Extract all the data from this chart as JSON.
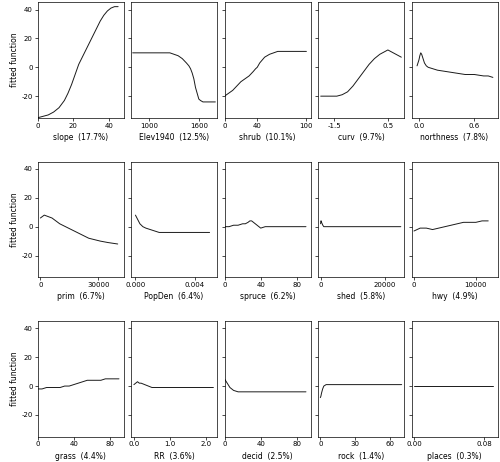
{
  "panels": [
    {
      "label": "slope  (17.7%)",
      "xlim": [
        0,
        48
      ],
      "xticks": [
        0,
        20,
        40
      ],
      "xticklabels": [
        "0",
        "20",
        "40"
      ],
      "x": [
        0,
        3,
        6,
        9,
        12,
        15,
        17,
        19,
        21,
        23,
        25,
        27,
        29,
        31,
        33,
        35,
        37,
        39,
        41,
        43,
        45
      ],
      "y": [
        -35,
        -34,
        -33,
        -31,
        -28,
        -23,
        -18,
        -12,
        -5,
        2,
        7,
        12,
        17,
        22,
        27,
        32,
        36,
        39,
        41,
        42,
        42
      ]
    },
    {
      "label": "Elev1940  (12.5%)",
      "xlim": [
        780,
        1820
      ],
      "xticks": [
        1000,
        1600
      ],
      "xticklabels": [
        "1000",
        "1600"
      ],
      "x": [
        800,
        850,
        900,
        950,
        1000,
        1050,
        1100,
        1150,
        1200,
        1250,
        1300,
        1350,
        1400,
        1450,
        1480,
        1500,
        1520,
        1540,
        1550,
        1560,
        1570,
        1580,
        1590,
        1600,
        1620,
        1650,
        1700,
        1750,
        1800
      ],
      "y": [
        10,
        10,
        10,
        10,
        10,
        10,
        10,
        10,
        10,
        10,
        9,
        8,
        6,
        3,
        1,
        -1,
        -4,
        -8,
        -11,
        -14,
        -16,
        -18,
        -20,
        -22,
        -23,
        -24,
        -24,
        -24,
        -24
      ]
    },
    {
      "label": "shrub  (10.1%)",
      "xlim": [
        0,
        105
      ],
      "xticks": [
        0,
        40,
        100
      ],
      "xticklabels": [
        "0",
        "40",
        "100"
      ],
      "x": [
        0,
        5,
        10,
        15,
        20,
        25,
        30,
        35,
        38,
        40,
        43,
        46,
        49,
        52,
        55,
        60,
        65,
        70,
        75,
        80,
        85,
        90,
        95,
        100
      ],
      "y": [
        -20,
        -18,
        -16,
        -13,
        -10,
        -8,
        -6,
        -3,
        -1,
        0,
        3,
        5,
        7,
        8,
        9,
        10,
        11,
        11,
        11,
        11,
        11,
        11,
        11,
        11
      ]
    },
    {
      "label": "curv  (9.7%)",
      "xlim": [
        -2.1,
        1.1
      ],
      "xticks": [
        -1.5,
        0.5
      ],
      "xticklabels": [
        "-1.5",
        "0.5"
      ],
      "x": [
        -2.0,
        -1.8,
        -1.6,
        -1.4,
        -1.2,
        -1.0,
        -0.8,
        -0.6,
        -0.4,
        -0.2,
        0.0,
        0.2,
        0.4,
        0.5,
        0.6,
        0.7,
        0.8,
        0.9,
        1.0
      ],
      "y": [
        -20,
        -20,
        -20,
        -20,
        -19,
        -17,
        -13,
        -8,
        -3,
        2,
        6,
        9,
        11,
        12,
        11,
        10,
        9,
        8,
        7
      ]
    },
    {
      "label": "northness  (7.8%)",
      "xlim": [
        -0.08,
        0.85
      ],
      "xticks": [
        0.0,
        0.6
      ],
      "xticklabels": [
        "0.0",
        "0.6"
      ],
      "x": [
        -0.02,
        0.0,
        0.01,
        0.02,
        0.03,
        0.04,
        0.05,
        0.06,
        0.08,
        0.1,
        0.15,
        0.2,
        0.3,
        0.4,
        0.5,
        0.6,
        0.7,
        0.75,
        0.8
      ],
      "y": [
        1,
        5,
        8,
        10,
        9,
        7,
        5,
        3,
        1,
        0,
        -1,
        -2,
        -3,
        -4,
        -5,
        -5,
        -6,
        -6,
        -7
      ]
    },
    {
      "label": "prim  (6.7%)",
      "xlim": [
        -1500,
        43000
      ],
      "xticks": [
        0,
        30000
      ],
      "xticklabels": [
        "0",
        "30000"
      ],
      "x": [
        0,
        1000,
        2000,
        4000,
        6000,
        8000,
        10000,
        13000,
        16000,
        19000,
        22000,
        25000,
        28000,
        31000,
        35000,
        40000
      ],
      "y": [
        6,
        7,
        8,
        7,
        6,
        4,
        2,
        0,
        -2,
        -4,
        -6,
        -8,
        -9,
        -10,
        -11,
        -12
      ]
    },
    {
      "label": "PopDen  (6.4%)",
      "xlim": [
        -0.0003,
        0.0055
      ],
      "xticks": [
        0.0,
        0.004
      ],
      "xticklabels": [
        "0.000",
        "0.004"
      ],
      "x": [
        0.0,
        0.0001,
        0.0002,
        0.0003,
        0.0005,
        0.0007,
        0.001,
        0.0013,
        0.0016,
        0.002,
        0.003,
        0.004,
        0.005
      ],
      "y": [
        8,
        6,
        4,
        2,
        0,
        -1,
        -2,
        -3,
        -4,
        -4,
        -4,
        -4,
        -4
      ]
    },
    {
      "label": "spruce  (6.2%)",
      "xlim": [
        0,
        95
      ],
      "xticks": [
        0,
        40,
        80
      ],
      "xticklabels": [
        "0",
        "40",
        "80"
      ],
      "x": [
        0,
        5,
        10,
        15,
        20,
        23,
        26,
        28,
        30,
        32,
        34,
        36,
        38,
        40,
        45,
        50,
        55,
        60,
        70,
        80,
        90
      ],
      "y": [
        0,
        0,
        1,
        1,
        2,
        2,
        3,
        4,
        4,
        3,
        2,
        1,
        0,
        -1,
        0,
        0,
        0,
        0,
        0,
        0,
        0
      ]
    },
    {
      "label": "shed  (5.8%)",
      "xlim": [
        -800,
        26000
      ],
      "xticks": [
        0,
        20000
      ],
      "xticklabels": [
        "0",
        "20000"
      ],
      "x": [
        0,
        100,
        200,
        300,
        500,
        700,
        1000,
        2000,
        5000,
        10000,
        15000,
        20000,
        25000
      ],
      "y": [
        2,
        4,
        4,
        3,
        2,
        1,
        0,
        0,
        0,
        0,
        0,
        0,
        0
      ]
    },
    {
      "label": "hwy  (4.9%)",
      "xlim": [
        -400,
        13500
      ],
      "xticks": [
        0,
        10000
      ],
      "xticklabels": [
        "0",
        "10000"
      ],
      "x": [
        0,
        500,
        1000,
        2000,
        3000,
        4000,
        5000,
        6000,
        7000,
        8000,
        9000,
        10000,
        11000,
        12000
      ],
      "y": [
        -3,
        -2,
        -1,
        -1,
        -2,
        -1,
        0,
        1,
        2,
        3,
        3,
        3,
        4,
        4
      ]
    },
    {
      "label": "grass  (4.4%)",
      "xlim": [
        0,
        95
      ],
      "xticks": [
        0,
        40,
        80
      ],
      "xticklabels": [
        "0",
        "40",
        "80"
      ],
      "x": [
        0,
        5,
        10,
        15,
        20,
        25,
        30,
        35,
        40,
        45,
        50,
        55,
        60,
        65,
        70,
        75,
        80,
        85,
        90
      ],
      "y": [
        -2,
        -2,
        -1,
        -1,
        -1,
        -1,
        0,
        0,
        1,
        2,
        3,
        4,
        4,
        4,
        4,
        5,
        5,
        5,
        5
      ]
    },
    {
      "label": "RR  (3.6%)",
      "xlim": [
        -0.08,
        2.3
      ],
      "xticks": [
        0.0,
        1.0,
        2.0
      ],
      "xticklabels": [
        "0.0",
        "1.0",
        "2.0"
      ],
      "x": [
        0.0,
        0.05,
        0.1,
        0.15,
        0.2,
        0.3,
        0.4,
        0.5,
        0.6,
        0.8,
        1.0,
        1.2,
        1.5,
        2.0,
        2.2
      ],
      "y": [
        1,
        2,
        3,
        2,
        2,
        1,
        0,
        -1,
        -1,
        -1,
        -1,
        -1,
        -1,
        -1,
        -1
      ]
    },
    {
      "label": "decid  (2.5%)",
      "xlim": [
        0,
        95
      ],
      "xticks": [
        0,
        40,
        80
      ],
      "xticklabels": [
        "0",
        "40",
        "80"
      ],
      "x": [
        0,
        1,
        2,
        4,
        6,
        8,
        10,
        15,
        20,
        25,
        30,
        40,
        50,
        60,
        70,
        80,
        90
      ],
      "y": [
        5,
        4,
        3,
        1,
        -1,
        -2,
        -3,
        -4,
        -4,
        -4,
        -4,
        -4,
        -4,
        -4,
        -4,
        -4,
        -4
      ]
    },
    {
      "label": "rock  (1.4%)",
      "xlim": [
        -2,
        72
      ],
      "xticks": [
        0,
        30,
        60
      ],
      "xticklabels": [
        "0",
        "30",
        "60"
      ],
      "x": [
        0,
        0.5,
        1,
        2,
        3,
        5,
        7,
        10,
        15,
        20,
        30,
        40,
        50,
        60,
        70
      ],
      "y": [
        -8,
        -7,
        -5,
        -2,
        0,
        1,
        1,
        1,
        1,
        1,
        1,
        1,
        1,
        1,
        1
      ]
    },
    {
      "label": "places  (0.3%)",
      "xlim": [
        -0.003,
        0.095
      ],
      "xticks": [
        0.0,
        0.08
      ],
      "xticklabels": [
        "0.00",
        "0.08"
      ],
      "x": [
        0.0,
        0.002,
        0.005,
        0.01,
        0.02,
        0.03,
        0.04,
        0.05,
        0.06,
        0.07,
        0.08,
        0.09
      ],
      "y": [
        0,
        0,
        0,
        0,
        0,
        0,
        0,
        0,
        0,
        0,
        0,
        0
      ]
    }
  ],
  "ylim": [
    -35,
    45
  ],
  "yticks": [
    -20,
    0,
    20,
    40
  ],
  "yticklabels": [
    "-20",
    "0",
    "20",
    "40"
  ],
  "ylabel": "fitted function",
  "bg_color": "#ffffff",
  "line_color": "#1a1a1a",
  "nrows": 3,
  "ncols": 5
}
